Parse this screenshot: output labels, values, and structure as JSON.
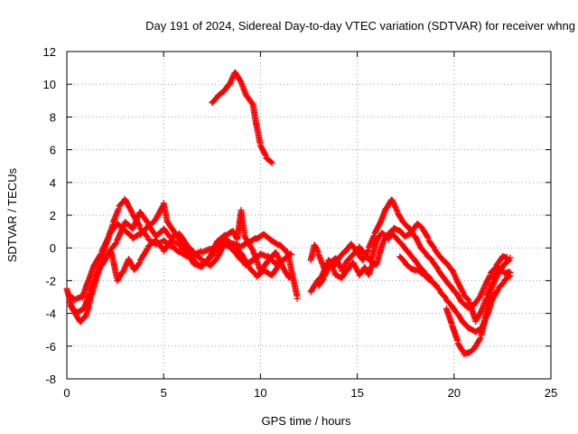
{
  "chart_data": {
    "type": "scatter",
    "title": "Day 191 of 2024, Sidereal Day-to-day VTEC variation (SDTVAR) for receiver whng",
    "xlabel": "GPS time / hours",
    "ylabel": "SDTVAR / TECUs",
    "xlim": [
      0,
      25
    ],
    "ylim": [
      -8,
      12
    ],
    "xticks": [
      0,
      5,
      10,
      15,
      20,
      25
    ],
    "yticks": [
      -8,
      -6,
      -4,
      -2,
      0,
      2,
      4,
      6,
      8,
      10,
      12
    ],
    "grid": true,
    "marker": "+",
    "colors": {
      "series": "#ff0000",
      "grid": "#a0a0a0",
      "axis": "#000000"
    },
    "series": [
      {
        "name": "pass-1",
        "points": [
          [
            0.0,
            -2.5
          ],
          [
            0.3,
            -3.8
          ],
          [
            0.7,
            -4.6
          ],
          [
            1.0,
            -4.2
          ],
          [
            1.3,
            -2.8
          ],
          [
            1.6,
            -1.5
          ],
          [
            2.0,
            0.2
          ],
          [
            2.4,
            1.6
          ],
          [
            2.7,
            2.5
          ],
          [
            3.0,
            2.9
          ],
          [
            3.4,
            2.0
          ],
          [
            3.8,
            1.2
          ],
          [
            4.2,
            0.6
          ],
          [
            4.6,
            0.3
          ],
          [
            5.0,
            0.5
          ],
          [
            5.4,
            0.1
          ],
          [
            5.8,
            -0.3
          ],
          [
            6.2,
            -0.6
          ],
          [
            6.6,
            -0.4
          ],
          [
            7.0,
            -0.2
          ],
          [
            7.4,
            0.0
          ],
          [
            7.8,
            0.2
          ],
          [
            8.2,
            0.5
          ],
          [
            8.6,
            0.2
          ],
          [
            9.0,
            0.0
          ],
          [
            9.4,
            0.3
          ],
          [
            9.8,
            0.6
          ],
          [
            10.2,
            0.9
          ],
          [
            10.6,
            0.5
          ],
          [
            11.0,
            0.2
          ],
          [
            11.4,
            -0.3
          ],
          [
            11.7,
            -2.0
          ],
          [
            11.9,
            -3.1
          ]
        ]
      },
      {
        "name": "pass-2",
        "points": [
          [
            0.1,
            -3.0
          ],
          [
            0.4,
            -3.2
          ],
          [
            0.8,
            -3.0
          ],
          [
            1.1,
            -2.0
          ],
          [
            1.4,
            -1.0
          ],
          [
            1.8,
            -0.2
          ],
          [
            2.2,
            0.8
          ],
          [
            2.6,
            1.4
          ],
          [
            3.0,
            1.0
          ],
          [
            3.4,
            0.6
          ],
          [
            3.8,
            0.9
          ],
          [
            4.2,
            1.4
          ],
          [
            4.6,
            1.8
          ],
          [
            5.0,
            2.7
          ],
          [
            5.2,
            1.5
          ],
          [
            5.6,
            0.8
          ],
          [
            6.0,
            0.2
          ],
          [
            6.4,
            -0.5
          ],
          [
            6.8,
            -1.0
          ],
          [
            7.2,
            -0.8
          ],
          [
            7.6,
            -0.3
          ],
          [
            8.0,
            0.2
          ],
          [
            8.4,
            0.0
          ],
          [
            8.8,
            -0.5
          ],
          [
            9.2,
            -1.0
          ],
          [
            9.6,
            -0.7
          ],
          [
            10.0,
            -0.3
          ],
          [
            10.4,
            -0.5
          ],
          [
            10.8,
            -1.0
          ],
          [
            11.2,
            -0.8
          ],
          [
            11.6,
            -0.4
          ]
        ]
      },
      {
        "name": "pass-3",
        "points": [
          [
            0.2,
            -3.5
          ],
          [
            0.5,
            -3.9
          ],
          [
            0.9,
            -3.6
          ],
          [
            1.2,
            -2.6
          ],
          [
            1.5,
            -1.8
          ],
          [
            1.9,
            -0.8
          ],
          [
            2.3,
            -0.3
          ],
          [
            2.6,
            -2.0
          ],
          [
            2.9,
            -1.4
          ],
          [
            3.2,
            -0.6
          ],
          [
            3.5,
            -1.3
          ],
          [
            3.8,
            -0.8
          ],
          [
            4.2,
            0.0
          ],
          [
            4.6,
            0.4
          ],
          [
            5.0,
            -0.2
          ],
          [
            5.4,
            0.5
          ],
          [
            5.8,
            0.3
          ],
          [
            6.2,
            -0.2
          ],
          [
            6.6,
            -1.0
          ],
          [
            7.0,
            -1.2
          ],
          [
            7.4,
            -0.6
          ],
          [
            7.8,
            0.4
          ],
          [
            8.2,
            0.8
          ],
          [
            8.6,
            1.1
          ],
          [
            8.8,
            0.6
          ],
          [
            9.0,
            2.3
          ],
          [
            9.2,
            0.6
          ],
          [
            9.6,
            -0.2
          ],
          [
            10.0,
            -1.5
          ],
          [
            10.4,
            -0.8
          ],
          [
            10.8,
            -0.2
          ],
          [
            11.2,
            -1.2
          ],
          [
            11.5,
            -1.8
          ]
        ]
      },
      {
        "name": "pass-4",
        "points": [
          [
            1.8,
            -1.0
          ],
          [
            2.2,
            -0.2
          ],
          [
            2.6,
            0.4
          ],
          [
            3.0,
            1.5
          ],
          [
            3.4,
            1.1
          ],
          [
            3.8,
            2.2
          ],
          [
            4.2,
            1.5
          ],
          [
            4.6,
            0.8
          ],
          [
            5.0,
            1.2
          ],
          [
            5.4,
            0.6
          ],
          [
            5.8,
            0.8
          ],
          [
            6.2,
            0.1
          ],
          [
            6.6,
            -0.4
          ],
          [
            7.0,
            -0.7
          ],
          [
            7.4,
            -1.0
          ],
          [
            7.8,
            -0.5
          ],
          [
            8.2,
            0.5
          ],
          [
            8.6,
            0.0
          ],
          [
            9.0,
            -0.4
          ],
          [
            9.4,
            -1.2
          ],
          [
            9.8,
            -1.7
          ],
          [
            10.2,
            -1.3
          ],
          [
            10.6,
            -1.6
          ],
          [
            11.0,
            -0.9
          ]
        ]
      },
      {
        "name": "pass-5",
        "points": [
          [
            7.5,
            8.8
          ],
          [
            7.8,
            9.2
          ],
          [
            8.1,
            9.5
          ],
          [
            8.4,
            10.0
          ],
          [
            8.7,
            10.8
          ],
          [
            9.0,
            10.2
          ],
          [
            9.3,
            9.3
          ],
          [
            9.6,
            8.8
          ],
          [
            9.8,
            7.4
          ],
          [
            10.0,
            6.2
          ],
          [
            10.3,
            5.5
          ],
          [
            10.6,
            5.2
          ]
        ]
      },
      {
        "name": "pass-6",
        "points": [
          [
            12.6,
            -0.8
          ],
          [
            12.8,
            0.2
          ],
          [
            13.0,
            -0.3
          ],
          [
            13.3,
            -1.2
          ],
          [
            13.6,
            -0.8
          ],
          [
            13.9,
            -1.7
          ],
          [
            14.2,
            -1.9
          ],
          [
            14.5,
            -1.4
          ],
          [
            14.8,
            -0.9
          ],
          [
            15.1,
            -1.6
          ],
          [
            15.4,
            -1.1
          ],
          [
            15.6,
            -1.6
          ],
          [
            15.8,
            -0.9
          ],
          [
            16.0,
            -1.1
          ],
          [
            16.2,
            -0.2
          ],
          [
            16.4,
            0.5
          ],
          [
            16.7,
            1.0
          ],
          [
            17.0,
            0.7
          ],
          [
            17.3,
            0.3
          ],
          [
            17.6,
            -0.2
          ],
          [
            17.9,
            -0.7
          ],
          [
            18.2,
            -1.2
          ],
          [
            18.5,
            -1.6
          ],
          [
            18.8,
            -1.9
          ],
          [
            19.1,
            -2.3
          ]
        ]
      },
      {
        "name": "pass-7",
        "points": [
          [
            12.6,
            -2.6
          ],
          [
            12.9,
            -2.0
          ],
          [
            13.2,
            -1.6
          ],
          [
            13.5,
            -0.8
          ],
          [
            13.8,
            -1.2
          ],
          [
            14.1,
            -0.6
          ],
          [
            14.4,
            -0.2
          ],
          [
            14.7,
            0.3
          ],
          [
            15.0,
            -0.2
          ],
          [
            15.3,
            -0.7
          ],
          [
            15.6,
            0.0
          ],
          [
            15.9,
            0.8
          ],
          [
            16.2,
            1.5
          ],
          [
            16.5,
            2.4
          ],
          [
            16.8,
            3.0
          ],
          [
            17.1,
            2.2
          ],
          [
            17.4,
            1.6
          ],
          [
            17.7,
            1.2
          ],
          [
            18.0,
            0.6
          ],
          [
            18.3,
            -0.1
          ],
          [
            18.6,
            -0.5
          ],
          [
            18.9,
            -0.8
          ],
          [
            19.2,
            -1.3
          ],
          [
            19.5,
            -1.8
          ],
          [
            19.8,
            -2.3
          ],
          [
            20.1,
            -2.8
          ],
          [
            20.4,
            -3.4
          ],
          [
            20.7,
            -3.7
          ],
          [
            21.0,
            -3.5
          ],
          [
            21.3,
            -3.0
          ],
          [
            21.6,
            -2.2
          ],
          [
            21.9,
            -1.5
          ],
          [
            22.2,
            -1.1
          ],
          [
            22.5,
            -0.6
          ],
          [
            22.8,
            -0.7
          ]
        ]
      },
      {
        "name": "pass-8",
        "points": [
          [
            13.0,
            -2.3
          ],
          [
            13.3,
            -1.8
          ],
          [
            13.6,
            -1.0
          ],
          [
            13.9,
            -0.7
          ],
          [
            14.2,
            -1.4
          ],
          [
            14.5,
            -0.7
          ],
          [
            14.8,
            -0.3
          ],
          [
            15.1,
            0.1
          ],
          [
            15.4,
            -0.4
          ],
          [
            15.7,
            -0.9
          ],
          [
            16.0,
            0.4
          ],
          [
            16.3,
            0.9
          ],
          [
            16.6,
            0.6
          ],
          [
            16.9,
            1.3
          ],
          [
            17.2,
            1.1
          ],
          [
            17.5,
            0.7
          ],
          [
            17.8,
            0.9
          ],
          [
            18.1,
            1.4
          ],
          [
            18.4,
            1.1
          ],
          [
            18.7,
            0.5
          ],
          [
            19.0,
            0.0
          ],
          [
            19.3,
            -0.5
          ],
          [
            19.6,
            -0.9
          ],
          [
            19.9,
            -1.4
          ],
          [
            20.2,
            -2.2
          ],
          [
            20.5,
            -2.9
          ],
          [
            20.8,
            -3.3
          ],
          [
            21.1,
            -4.4
          ],
          [
            21.4,
            -3.8
          ],
          [
            21.7,
            -2.9
          ],
          [
            22.0,
            -2.0
          ],
          [
            22.3,
            -1.3
          ],
          [
            22.6,
            -1.6
          ],
          [
            22.9,
            -1.5
          ]
        ]
      },
      {
        "name": "pass-9",
        "points": [
          [
            19.6,
            -3.8
          ],
          [
            19.9,
            -4.8
          ],
          [
            20.2,
            -5.8
          ],
          [
            20.5,
            -6.4
          ],
          [
            20.8,
            -6.3
          ],
          [
            21.1,
            -6.0
          ],
          [
            21.4,
            -5.4
          ],
          [
            21.6,
            -4.4
          ],
          [
            21.8,
            -3.2
          ],
          [
            22.0,
            -2.3
          ],
          [
            22.3,
            -1.5
          ],
          [
            22.6,
            -0.9
          ],
          [
            22.9,
            -0.6
          ]
        ]
      },
      {
        "name": "pass-10",
        "points": [
          [
            17.2,
            -0.5
          ],
          [
            17.5,
            -0.9
          ],
          [
            17.8,
            -1.2
          ],
          [
            18.1,
            -1.3
          ],
          [
            18.4,
            -1.6
          ],
          [
            18.7,
            -2.0
          ],
          [
            19.0,
            -2.3
          ],
          [
            19.3,
            -2.7
          ],
          [
            19.6,
            -3.1
          ],
          [
            19.9,
            -3.5
          ],
          [
            20.2,
            -4.0
          ],
          [
            20.5,
            -4.6
          ],
          [
            20.8,
            -5.0
          ],
          [
            21.1,
            -5.2
          ],
          [
            21.4,
            -5.0
          ],
          [
            21.7,
            -4.1
          ],
          [
            22.0,
            -3.0
          ],
          [
            22.3,
            -2.4
          ],
          [
            22.6,
            -2.0
          ],
          [
            22.9,
            -1.7
          ]
        ]
      }
    ]
  }
}
